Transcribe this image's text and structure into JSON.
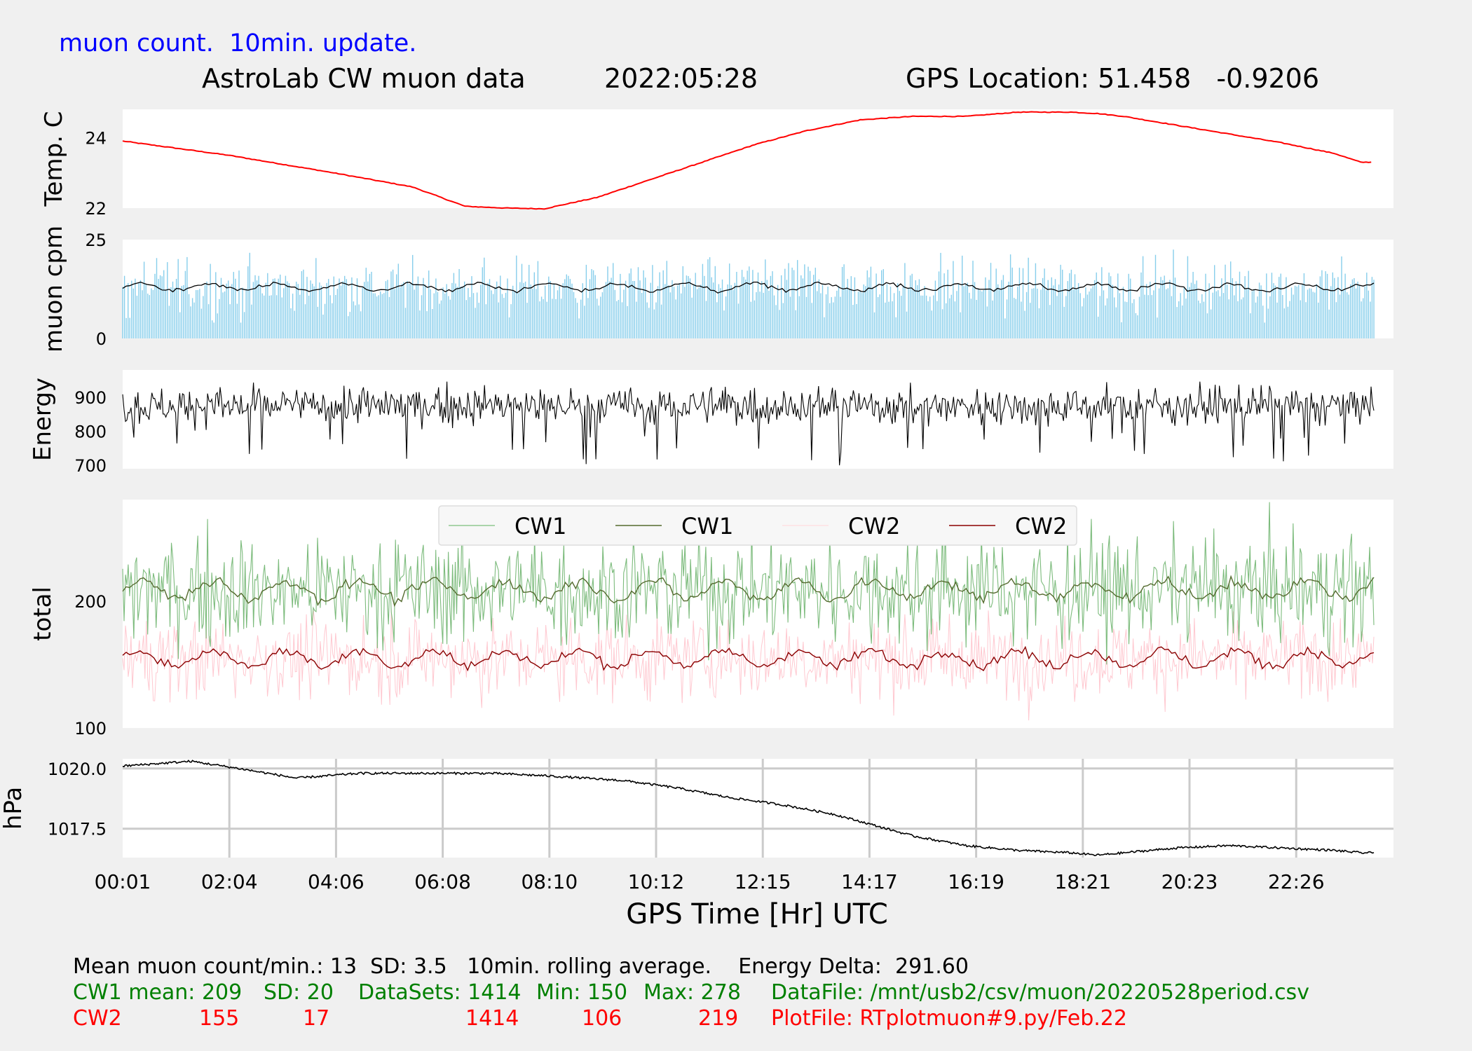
{
  "header": {
    "subtitle": "muon count.  10min. update.",
    "title": "AstroLab CW muon data",
    "date": "2022:05:28",
    "location": "GPS Location: 51.458   -0.9206"
  },
  "xaxis": {
    "label": "GPS Time  [Hr] UTC",
    "ticks": [
      "00:01",
      "02:04",
      "04:06",
      "06:08",
      "08:10",
      "10:12",
      "12:15",
      "14:17",
      "16:19",
      "18:21",
      "20:23",
      "22:26"
    ]
  },
  "chart_data": [
    {
      "type": "line",
      "ylabel": "Temp. C",
      "yticks": [
        "22",
        "24"
      ],
      "ylim": [
        22,
        24.8
      ],
      "series": [
        {
          "color": "#ff0000",
          "x_hours": [
            0,
            2,
            4,
            5.5,
            6.5,
            7.3,
            8,
            9,
            10,
            11,
            12,
            13,
            14,
            15,
            16,
            17,
            18,
            18.5,
            19,
            20,
            21,
            22,
            23,
            23.5
          ],
          "y": [
            23.9,
            23.5,
            23.0,
            22.6,
            22.05,
            22.0,
            21.98,
            22.3,
            22.8,
            23.3,
            23.8,
            24.2,
            24.5,
            24.6,
            24.6,
            24.72,
            24.72,
            24.68,
            24.6,
            24.35,
            24.1,
            23.85,
            23.55,
            23.3
          ]
        }
      ],
      "grid": false
    },
    {
      "type": "bar",
      "ylabel": "muon cpm",
      "yticks": [
        "0",
        "25"
      ],
      "ylim": [
        0,
        25
      ],
      "series": [
        {
          "color": "#87ceeb",
          "mean": 13,
          "sd": 3.5,
          "max": 25
        },
        {
          "color": "#000000",
          "rolling_average": 13
        }
      ],
      "grid": false
    },
    {
      "type": "line",
      "ylabel": "Energy",
      "yticks": [
        "700",
        "800",
        "900"
      ],
      "ylim": [
        690,
        980
      ],
      "series": [
        {
          "color": "#000000",
          "mean": 875,
          "min": 700,
          "max": 970
        }
      ],
      "grid": false
    },
    {
      "type": "line",
      "ylabel": "total",
      "yticks": [
        "100",
        "200"
      ],
      "ylim": [
        100,
        280
      ],
      "legend": {
        "placement": "top-center",
        "entries": [
          "CW1",
          "CW1",
          "CW2",
          "CW2"
        ],
        "colors": [
          "#90c890",
          "#556b2f",
          "#ffe0e4",
          "#8b0000"
        ]
      },
      "series": [
        {
          "name": "CW1",
          "color": "#7cbb7c",
          "mean": 209,
          "sd": 20,
          "min": 150,
          "max": 278
        },
        {
          "name": "CW1",
          "color": "#556b2f",
          "mean": 209
        },
        {
          "name": "CW2",
          "color": "#ffc8d0",
          "mean": 155,
          "sd": 17,
          "min": 106,
          "max": 219
        },
        {
          "name": "CW2",
          "color": "#8b0000",
          "mean": 155
        }
      ],
      "grid": false
    },
    {
      "type": "line",
      "ylabel": "hPa",
      "yticks": [
        "1017.5",
        "1020.0"
      ],
      "ylim": [
        1016.3,
        1020.4
      ],
      "series": [
        {
          "color": "#000000",
          "x_hours": [
            0,
            1.3,
            2.2,
            3.3,
            4.5,
            6,
            7,
            8,
            9.5,
            10.5,
            11.5,
            12.5,
            13.5,
            14,
            15,
            16,
            17,
            18,
            18.5,
            19,
            20,
            21,
            22,
            23,
            23.5
          ],
          "y": [
            1020.1,
            1020.3,
            1020.0,
            1019.6,
            1019.8,
            1019.8,
            1019.8,
            1019.7,
            1019.5,
            1019.2,
            1018.8,
            1018.5,
            1018.1,
            1017.8,
            1017.2,
            1016.8,
            1016.6,
            1016.5,
            1016.4,
            1016.5,
            1016.7,
            1016.8,
            1016.7,
            1016.6,
            1016.5
          ]
        }
      ],
      "grid": true
    }
  ],
  "footer": {
    "line1": "Mean muon count/min.: 13  SD: 3.5   10min. rolling average.    Energy Delta:  291.60",
    "cw1": {
      "label": "CW1 mean: 209",
      "sd": "SD: 20",
      "datasets": "DataSets: 1414",
      "min": "Min: 150",
      "max": "Max: 278",
      "file": "DataFile: /mnt/usb2/csv/muon/20220528period.csv"
    },
    "cw2": {
      "label": "CW2",
      "mean": "155",
      "sd": "17",
      "datasets": "1414",
      "min": "106",
      "max": "219",
      "file": "PlotFile: RTplotmuon#9.py/Feb.22"
    }
  }
}
